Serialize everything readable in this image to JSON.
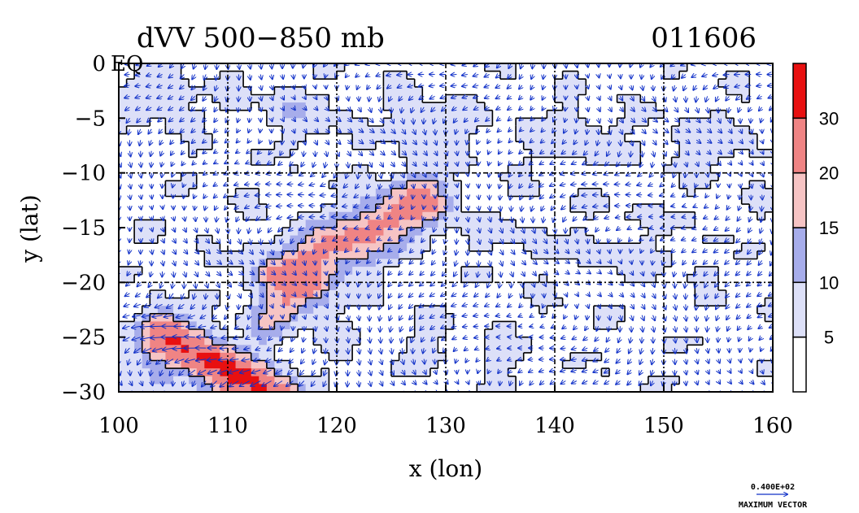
{
  "chart_data": {
    "type": "heatmap",
    "title": "dVV 500−850 mb",
    "subtitle": "011606",
    "xlabel": "x (lon)",
    "ylabel": "y (lat)",
    "xlim": [
      100,
      160
    ],
    "ylim": [
      -30,
      0
    ],
    "x_ticks": [
      "100",
      "110",
      "120",
      "130",
      "140",
      "150",
      "160"
    ],
    "y_ticks": [
      "0",
      "−5",
      "−10",
      "−15",
      "−20",
      "−25",
      "−30"
    ],
    "x_tick_values": [
      100,
      110,
      120,
      130,
      140,
      150,
      160
    ],
    "y_tick_values": [
      0,
      -5,
      -10,
      -15,
      -20,
      -25,
      -30
    ],
    "corner_label": "EQ",
    "grid": true,
    "colorbar": {
      "levels": [
        5,
        10,
        15,
        20,
        30
      ],
      "labels": [
        "5",
        "10",
        "15",
        "20",
        "30"
      ],
      "colors": [
        "#ffffff",
        "#dde0f8",
        "#a7adeb",
        "#f6c4c4",
        "#ef8484",
        "#e81010"
      ]
    },
    "vector_legend": {
      "value": "0.400E+02",
      "label": "MAXIMUM VECTOR",
      "color": "#1030c8"
    },
    "features": [
      {
        "name": "band-NE-SW",
        "from": [
          113,
          -22
        ],
        "to": [
          128,
          -12
        ],
        "peak": 30
      },
      {
        "name": "band-SW",
        "from": [
          104,
          -24
        ],
        "to": [
          114,
          -30
        ],
        "peak": 30
      },
      {
        "name": "north-coast-band",
        "from": [
          100,
          -3
        ],
        "to": [
          160,
          -8
        ],
        "peak": 15
      }
    ]
  }
}
